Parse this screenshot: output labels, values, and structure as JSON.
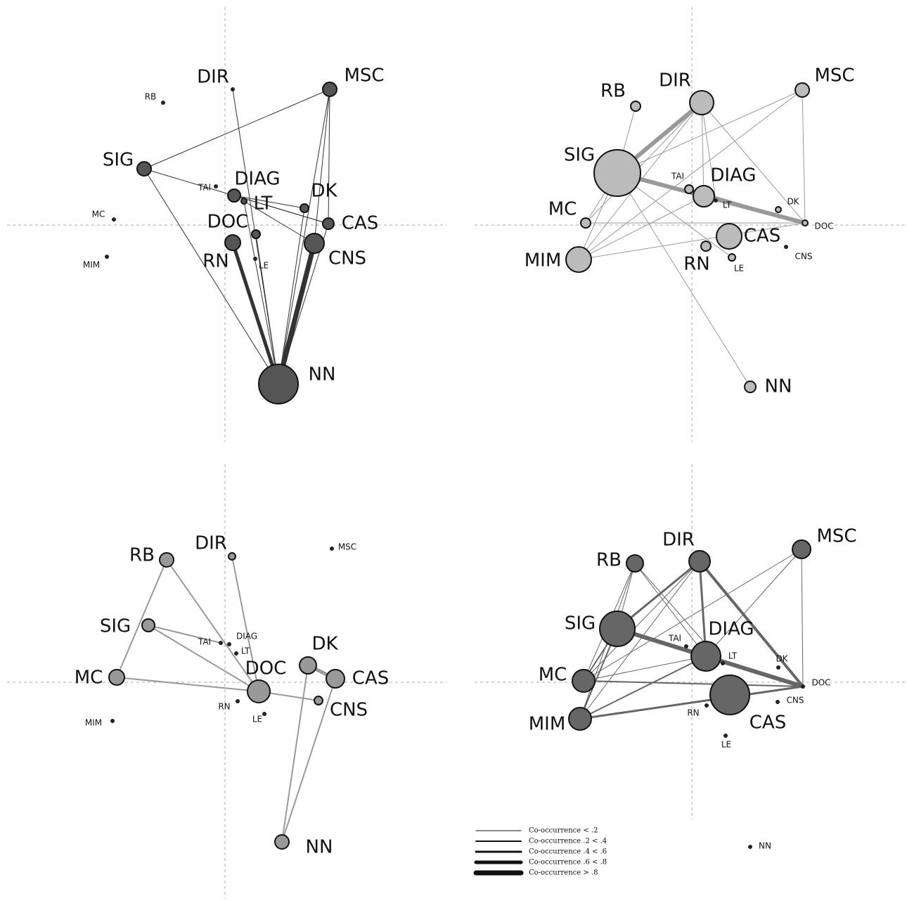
{
  "panels": [
    {
      "nodes": [
        {
          "label": "RB"
        },
        {
          "label": "DIR"
        },
        {
          "label": "MSC"
        },
        {
          "label": "SIG"
        },
        {
          "label": "TAI"
        },
        {
          "label": "DIAG"
        },
        {
          "label": "LT"
        },
        {
          "label": "DK"
        },
        {
          "label": "MC"
        },
        {
          "label": "DOC"
        },
        {
          "label": "CAS"
        },
        {
          "label": "CNS"
        },
        {
          "label": "MIM"
        },
        {
          "label": "RN"
        },
        {
          "label": "LE"
        },
        {
          "label": "NN"
        }
      ]
    },
    {
      "nodes": [
        {
          "label": "RB"
        },
        {
          "label": "DIR"
        },
        {
          "label": "MSC"
        },
        {
          "label": "SIG"
        },
        {
          "label": "TAI"
        },
        {
          "label": "DIAG"
        },
        {
          "label": "LT"
        },
        {
          "label": "DK"
        },
        {
          "label": "MC"
        },
        {
          "label": "DOC"
        },
        {
          "label": "CAS"
        },
        {
          "label": "CNS"
        },
        {
          "label": "MIM"
        },
        {
          "label": "RN"
        },
        {
          "label": "LE"
        },
        {
          "label": "NN"
        }
      ]
    },
    {
      "nodes": [
        {
          "label": "RB"
        },
        {
          "label": "DIR"
        },
        {
          "label": "MSC"
        },
        {
          "label": "SIG"
        },
        {
          "label": "TAI"
        },
        {
          "label": "DIAG"
        },
        {
          "label": "LT"
        },
        {
          "label": "DK"
        },
        {
          "label": "MC"
        },
        {
          "label": "DOC"
        },
        {
          "label": "CAS"
        },
        {
          "label": "CNS"
        },
        {
          "label": "MIM"
        },
        {
          "label": "RN"
        },
        {
          "label": "LE"
        },
        {
          "label": "NN"
        }
      ]
    },
    {
      "nodes": [
        {
          "label": "RB"
        },
        {
          "label": "DIR"
        },
        {
          "label": "MSC"
        },
        {
          "label": "SIG"
        },
        {
          "label": "TAI"
        },
        {
          "label": "DIAG"
        },
        {
          "label": "LT"
        },
        {
          "label": "DK"
        },
        {
          "label": "MC"
        },
        {
          "label": "DOC"
        },
        {
          "label": "CAS"
        },
        {
          "label": "CNS"
        },
        {
          "label": "MIM"
        },
        {
          "label": "RN"
        },
        {
          "label": "LE"
        },
        {
          "label": "NN"
        }
      ]
    }
  ],
  "legend": {
    "items": [
      {
        "label": "Co-occurrence < .2"
      },
      {
        "label": "Co-occurrence .2 < .4"
      },
      {
        "label": "Co-occurrence .4 < .6"
      },
      {
        "label": "Co-occurrence .6 < .8"
      },
      {
        "label": "Co-occurrence > .8"
      }
    ]
  }
}
